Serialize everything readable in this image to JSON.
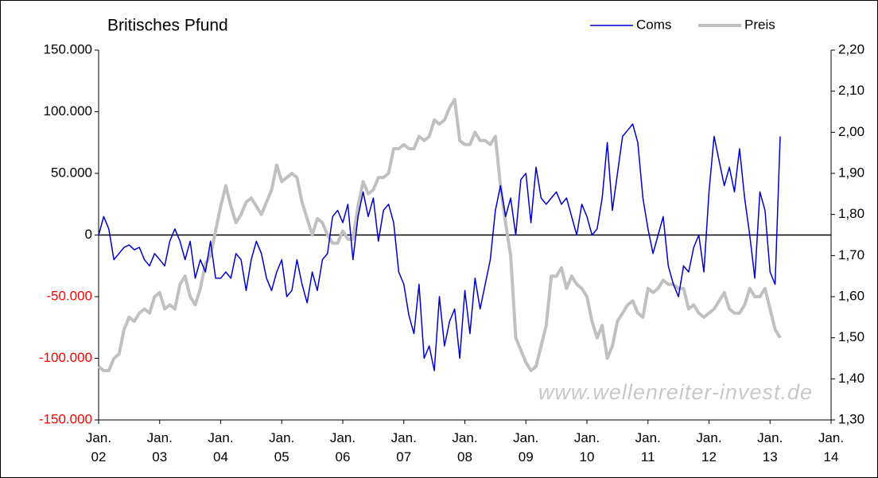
{
  "chart_data": {
    "type": "line",
    "title": "Britisches Pfund",
    "watermark": "www.wellenreiter-invest.de",
    "x": [
      "2002-01",
      "2002-02",
      "2002-03",
      "2002-04",
      "2002-05",
      "2002-06",
      "2002-07",
      "2002-08",
      "2002-09",
      "2002-10",
      "2002-11",
      "2002-12",
      "2003-01",
      "2003-02",
      "2003-03",
      "2003-04",
      "2003-05",
      "2003-06",
      "2003-07",
      "2003-08",
      "2003-09",
      "2003-10",
      "2003-11",
      "2003-12",
      "2004-01",
      "2004-02",
      "2004-03",
      "2004-04",
      "2004-05",
      "2004-06",
      "2004-07",
      "2004-08",
      "2004-09",
      "2004-10",
      "2004-11",
      "2004-12",
      "2005-01",
      "2005-02",
      "2005-03",
      "2005-04",
      "2005-05",
      "2005-06",
      "2005-07",
      "2005-08",
      "2005-09",
      "2005-10",
      "2005-11",
      "2005-12",
      "2006-01",
      "2006-02",
      "2006-03",
      "2006-04",
      "2006-05",
      "2006-06",
      "2006-07",
      "2006-08",
      "2006-09",
      "2006-10",
      "2006-11",
      "2006-12",
      "2007-01",
      "2007-02",
      "2007-03",
      "2007-04",
      "2007-05",
      "2007-06",
      "2007-07",
      "2007-08",
      "2007-09",
      "2007-10",
      "2007-11",
      "2007-12",
      "2008-01",
      "2008-02",
      "2008-03",
      "2008-04",
      "2008-05",
      "2008-06",
      "2008-07",
      "2008-08",
      "2008-09",
      "2008-10",
      "2008-11",
      "2008-12",
      "2009-01",
      "2009-02",
      "2009-03",
      "2009-04",
      "2009-05",
      "2009-06",
      "2009-07",
      "2009-08",
      "2009-09",
      "2009-10",
      "2009-11",
      "2009-12",
      "2010-01",
      "2010-02",
      "2010-03",
      "2010-04",
      "2010-05",
      "2010-06",
      "2010-07",
      "2010-08",
      "2010-09",
      "2010-10",
      "2010-11",
      "2010-12",
      "2011-01",
      "2011-02",
      "2011-03",
      "2011-04",
      "2011-05",
      "2011-06",
      "2011-07",
      "2011-08",
      "2011-09",
      "2011-10",
      "2011-11",
      "2011-12",
      "2012-01",
      "2012-02",
      "2012-03",
      "2012-04",
      "2012-05",
      "2012-06",
      "2012-07",
      "2012-08",
      "2012-09",
      "2012-10",
      "2012-11",
      "2012-12",
      "2013-01",
      "2013-02",
      "2013-03"
    ],
    "series": [
      {
        "name": "Coms",
        "color": "#0000cc",
        "axis": "y",
        "values": [
          0,
          15000,
          5000,
          -20000,
          -15000,
          -10000,
          -8000,
          -12000,
          -10000,
          -20000,
          -25000,
          -15000,
          -20000,
          -25000,
          -5000,
          5000,
          -5000,
          -20000,
          -5000,
          -35000,
          -20000,
          -30000,
          -5000,
          -35000,
          -35000,
          -30000,
          -35000,
          -15000,
          -20000,
          -45000,
          -20000,
          -5000,
          -15000,
          -35000,
          -45000,
          -30000,
          -20000,
          -50000,
          -45000,
          -20000,
          -40000,
          -55000,
          -30000,
          -45000,
          -20000,
          -15000,
          15000,
          20000,
          10000,
          25000,
          -20000,
          15000,
          35000,
          15000,
          30000,
          -5000,
          20000,
          25000,
          10000,
          -30000,
          -40000,
          -65000,
          -80000,
          -40000,
          -100000,
          -90000,
          -110000,
          -50000,
          -90000,
          -70000,
          -60000,
          -100000,
          -45000,
          -80000,
          -35000,
          -60000,
          -40000,
          -20000,
          20000,
          40000,
          15000,
          30000,
          0,
          45000,
          50000,
          10000,
          55000,
          30000,
          25000,
          30000,
          35000,
          25000,
          30000,
          15000,
          0,
          25000,
          15000,
          0,
          5000,
          30000,
          75000,
          20000,
          50000,
          80000,
          85000,
          90000,
          75000,
          30000,
          5000,
          -15000,
          0,
          15000,
          -25000,
          -40000,
          -50000,
          -25000,
          -30000,
          -10000,
          0,
          -30000,
          35000,
          80000,
          60000,
          40000,
          55000,
          35000,
          70000,
          30000,
          0,
          -35000,
          35000,
          20000,
          -30000,
          -40000,
          80000
        ]
      },
      {
        "name": "Preis",
        "color": "#c0c0c0",
        "axis": "y2",
        "values": [
          1.43,
          1.42,
          1.42,
          1.45,
          1.46,
          1.52,
          1.55,
          1.54,
          1.56,
          1.57,
          1.56,
          1.6,
          1.61,
          1.57,
          1.58,
          1.57,
          1.63,
          1.65,
          1.6,
          1.58,
          1.62,
          1.68,
          1.7,
          1.76,
          1.82,
          1.87,
          1.82,
          1.78,
          1.8,
          1.83,
          1.84,
          1.82,
          1.8,
          1.83,
          1.86,
          1.92,
          1.88,
          1.89,
          1.9,
          1.89,
          1.83,
          1.79,
          1.75,
          1.79,
          1.78,
          1.75,
          1.73,
          1.73,
          1.76,
          1.74,
          1.74,
          1.82,
          1.88,
          1.85,
          1.86,
          1.89,
          1.89,
          1.9,
          1.96,
          1.96,
          1.97,
          1.96,
          1.96,
          1.99,
          1.98,
          1.99,
          2.03,
          2.02,
          2.03,
          2.06,
          2.08,
          1.98,
          1.97,
          1.97,
          2.0,
          1.98,
          1.98,
          1.97,
          1.99,
          1.87,
          1.78,
          1.7,
          1.5,
          1.47,
          1.44,
          1.42,
          1.43,
          1.48,
          1.53,
          1.65,
          1.65,
          1.67,
          1.62,
          1.65,
          1.63,
          1.62,
          1.6,
          1.54,
          1.5,
          1.53,
          1.45,
          1.48,
          1.54,
          1.56,
          1.58,
          1.59,
          1.56,
          1.55,
          1.62,
          1.61,
          1.62,
          1.64,
          1.63,
          1.63,
          1.62,
          1.62,
          1.57,
          1.58,
          1.56,
          1.55,
          1.56,
          1.57,
          1.59,
          1.61,
          1.57,
          1.56,
          1.56,
          1.58,
          1.62,
          1.6,
          1.6,
          1.62,
          1.57,
          1.52,
          1.5
        ]
      }
    ],
    "xlim": [
      "2002-01",
      "2014-01"
    ],
    "xticks": [
      {
        "value": "2002-01",
        "label": "Jan. 02"
      },
      {
        "value": "2003-01",
        "label": "Jan. 03"
      },
      {
        "value": "2004-01",
        "label": "Jan. 04"
      },
      {
        "value": "2005-01",
        "label": "Jan. 05"
      },
      {
        "value": "2006-01",
        "label": "Jan. 06"
      },
      {
        "value": "2007-01",
        "label": "Jan. 07"
      },
      {
        "value": "2008-01",
        "label": "Jan. 08"
      },
      {
        "value": "2009-01",
        "label": "Jan. 09"
      },
      {
        "value": "2010-01",
        "label": "Jan. 10"
      },
      {
        "value": "2011-01",
        "label": "Jan. 11"
      },
      {
        "value": "2012-01",
        "label": "Jan. 12"
      },
      {
        "value": "2013-01",
        "label": "Jan. 13"
      },
      {
        "value": "2014-01",
        "label": "Jan. 14"
      }
    ],
    "ylim": [
      -150000,
      150000
    ],
    "yticks": [
      {
        "value": -150000,
        "label": "-150.000"
      },
      {
        "value": -100000,
        "label": "-100.000"
      },
      {
        "value": -50000,
        "label": "-50.000"
      },
      0,
      {
        "value": 50000,
        "label": "50.000"
      },
      {
        "value": 100000,
        "label": "100.000"
      },
      {
        "value": 150000,
        "label": "150.000"
      }
    ],
    "negative_label_color": "#ff0000",
    "y2lim": [
      1.3,
      2.2
    ],
    "y2ticks": [
      {
        "value": 1.3,
        "label": "1,30"
      },
      {
        "value": 1.4,
        "label": "1,40"
      },
      {
        "value": 1.5,
        "label": "1,50"
      },
      {
        "value": 1.6,
        "label": "1,60"
      },
      {
        "value": 1.7,
        "label": "1,70"
      },
      {
        "value": 1.8,
        "label": "1,80"
      },
      {
        "value": 1.9,
        "label": "1,90"
      },
      {
        "value": 2.0,
        "label": "2,00"
      },
      {
        "value": 2.1,
        "label": "2,10"
      },
      {
        "value": 2.2,
        "label": "2,20"
      }
    ],
    "grid": false,
    "legend": "top-right"
  }
}
